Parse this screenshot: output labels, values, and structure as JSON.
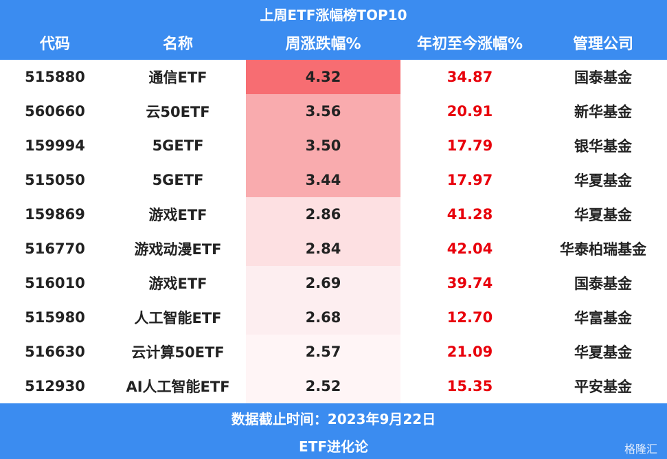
{
  "header": {
    "title": "上周ETF涨幅榜TOP10"
  },
  "table": {
    "columns": [
      "代码",
      "名称",
      "周涨跌幅%",
      "年初至今涨幅%",
      "管理公司"
    ],
    "rows": [
      [
        "515880",
        "通信ETF",
        "4.32",
        "34.87",
        "国泰基金"
      ],
      [
        "560660",
        "云50ETF",
        "3.56",
        "20.91",
        "新华基金"
      ],
      [
        "159994",
        "5GETF",
        "3.50",
        "17.79",
        "银华基金"
      ],
      [
        "515050",
        "5GETF",
        "3.44",
        "17.97",
        "华夏基金"
      ],
      [
        "159869",
        "游戏ETF",
        "2.86",
        "41.28",
        "华夏基金"
      ],
      [
        "516770",
        "游戏动漫ETF",
        "2.84",
        "42.04",
        "华泰柏瑞基金"
      ],
      [
        "516010",
        "游戏ETF",
        "2.69",
        "39.74",
        "国泰基金"
      ],
      [
        "515980",
        "人工智能ETF",
        "2.68",
        "12.70",
        "华富基金"
      ],
      [
        "516630",
        "云计算50ETF",
        "2.57",
        "21.09",
        "华夏基金"
      ],
      [
        "512930",
        "AI人工智能ETF",
        "2.52",
        "15.35",
        "平安基金"
      ]
    ],
    "highlight_colors": [
      "#f76d72",
      "#f9abae",
      "#f9abae",
      "#f9abae",
      "#fde0e2",
      "#fde0e2",
      "#fdeef0",
      "#fdeef0",
      "#fff5f6",
      "#fff5f6"
    ],
    "ytd_color": "#e8000b"
  },
  "footer": {
    "date_note": "数据截止时间：2023年9月22日",
    "source": "ETF进化论",
    "watermark": "格隆汇"
  }
}
